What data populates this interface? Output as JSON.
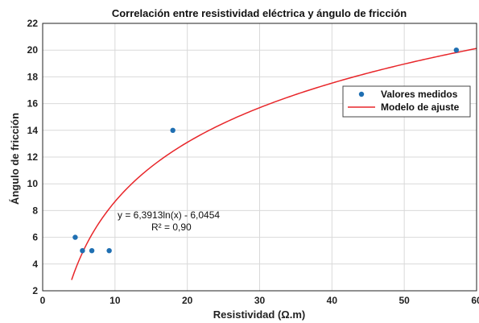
{
  "chart_data": {
    "type": "scatter",
    "title": "Correlación entre resistividad eléctrica y ángulo de fricción",
    "xlabel": "Resistividad (Ω.m)",
    "ylabel": "Ángulo de fricción",
    "xlim": [
      0,
      60
    ],
    "ylim": [
      2,
      22
    ],
    "xticks": [
      0,
      10,
      20,
      30,
      40,
      50,
      60
    ],
    "yticks": [
      2,
      4,
      6,
      8,
      10,
      12,
      14,
      16,
      18,
      20,
      22
    ],
    "grid": true,
    "legend_position": "right",
    "series": [
      {
        "name": "Valores medidos",
        "kind": "scatter",
        "color": "#1f6fb2",
        "points": [
          {
            "x": 4.5,
            "y": 6
          },
          {
            "x": 5.5,
            "y": 5
          },
          {
            "x": 6.8,
            "y": 5
          },
          {
            "x": 9.2,
            "y": 5
          },
          {
            "x": 18,
            "y": 14
          },
          {
            "x": 57.2,
            "y": 20
          }
        ]
      },
      {
        "name": "Modelo de ajuste",
        "kind": "line",
        "color": "#e8262a",
        "model": {
          "a": 6.3913,
          "b": -6.0454,
          "x_start": 4,
          "x_end": 60
        }
      }
    ],
    "annotation": {
      "equation": "y = 6,3913ln(x)  - 6,0454",
      "r2": "R² = 0,90"
    }
  }
}
